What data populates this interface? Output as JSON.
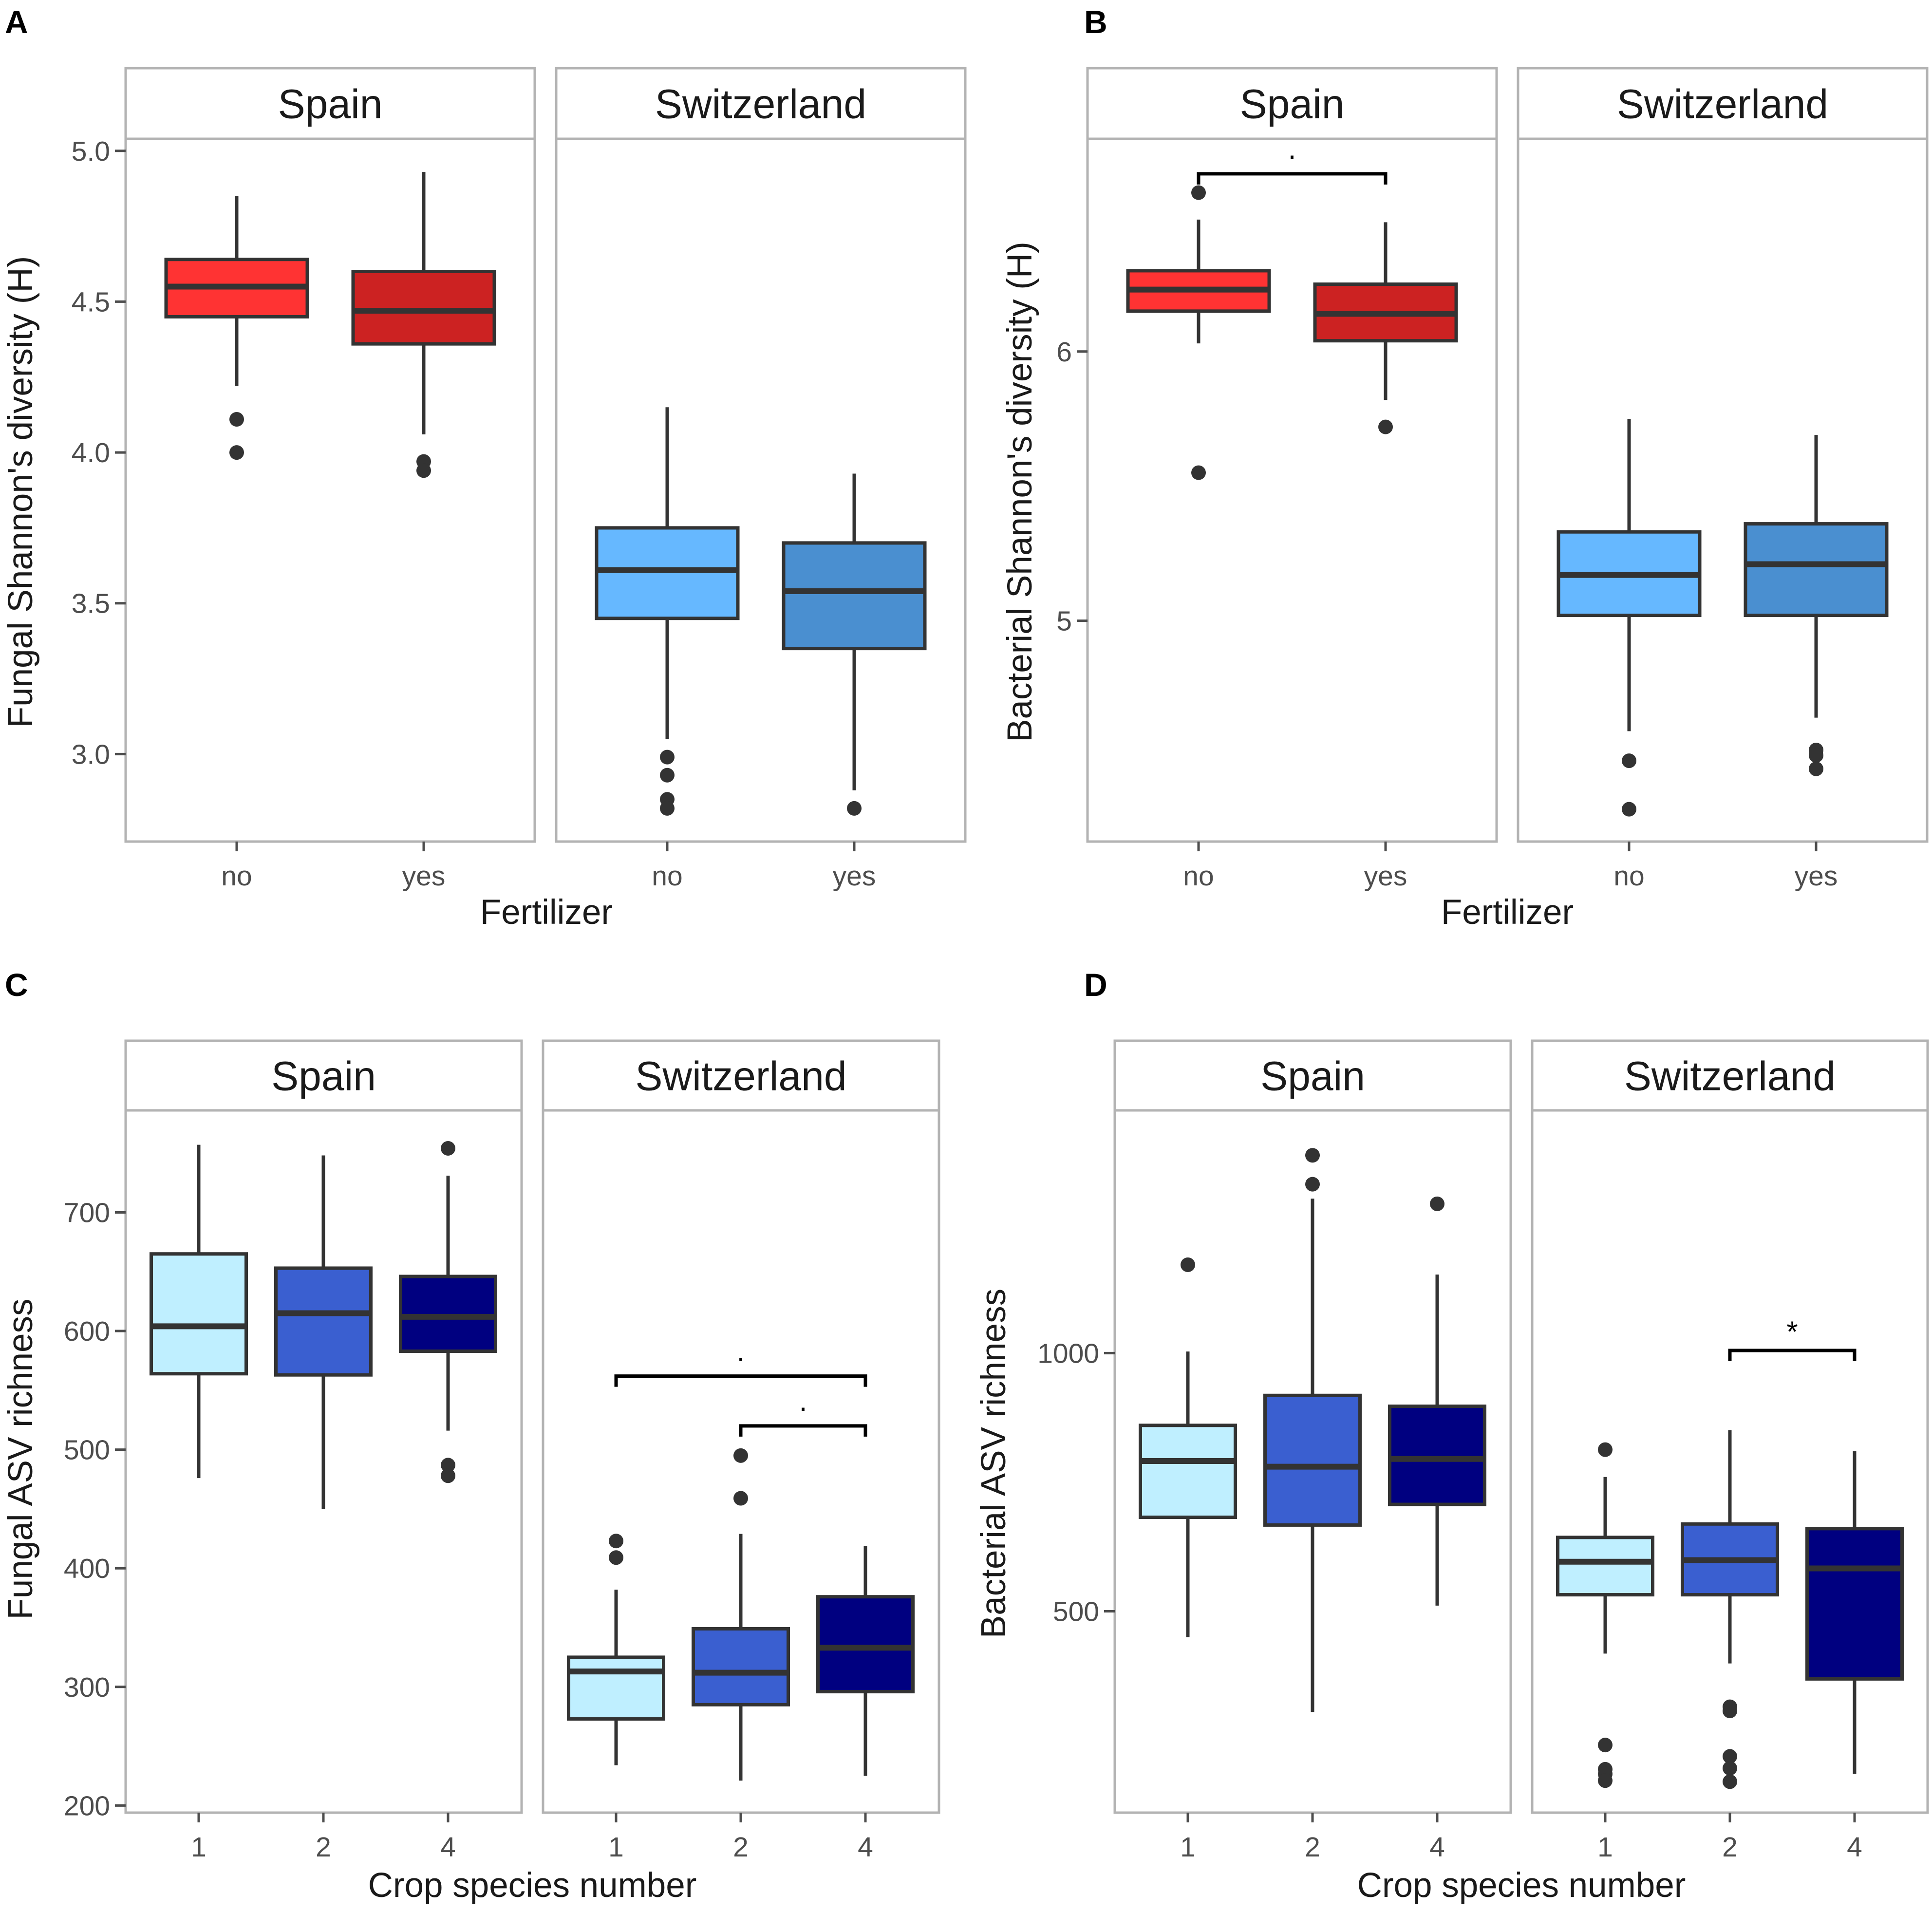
{
  "figure": {
    "colors": {
      "spain_no": "#FF3333",
      "spain_yes": "#CC2222",
      "swiss_no": "#66B8FF",
      "swiss_yes": "#4A8FD0",
      "crop_1": "#BFEFFF",
      "crop_2": "#3A5FD0",
      "crop_4": "#000080"
    }
  },
  "chart_data": [
    {
      "panel": "A",
      "type": "box",
      "title": "",
      "xlabel": "Fertilizer",
      "ylabel": "Fungal Shannon's diversity (H)",
      "ylim": [
        2.71,
        5.04
      ],
      "yticks": [
        3.0,
        3.5,
        4.0,
        4.5,
        5.0
      ],
      "ytick_labels": [
        "3.0",
        "3.5",
        "4.0",
        "4.5",
        "5.0"
      ],
      "facets": [
        {
          "label": "Spain",
          "boxes": [
            {
              "x": "no",
              "color_key": "spain_no",
              "whisker_low": 4.22,
              "q1": 4.45,
              "median": 4.55,
              "q3": 4.64,
              "whisker_high": 4.85,
              "outliers": [
                4.11,
                4.0
              ]
            },
            {
              "x": "yes",
              "color_key": "spain_yes",
              "whisker_low": 4.06,
              "q1": 4.36,
              "median": 4.47,
              "q3": 4.6,
              "whisker_high": 4.93,
              "outliers": [
                3.97,
                3.94
              ]
            }
          ],
          "brackets": []
        },
        {
          "label": "Switzerland",
          "boxes": [
            {
              "x": "no",
              "color_key": "swiss_no",
              "whisker_low": 3.05,
              "q1": 3.45,
              "median": 3.61,
              "q3": 3.75,
              "whisker_high": 4.15,
              "outliers": [
                2.99,
                2.93,
                2.85,
                2.82
              ]
            },
            {
              "x": "yes",
              "color_key": "swiss_yes",
              "whisker_low": 2.88,
              "q1": 3.35,
              "median": 3.54,
              "q3": 3.7,
              "whisker_high": 3.93,
              "outliers": [
                2.82
              ]
            }
          ],
          "brackets": []
        }
      ]
    },
    {
      "panel": "B",
      "type": "box",
      "title": "",
      "xlabel": "Fertilizer",
      "ylabel": "Bacterial Shannon's diversity (H)",
      "ylim": [
        4.18,
        6.79
      ],
      "yticks": [
        5,
        6
      ],
      "ytick_labels": [
        "5",
        "6"
      ],
      "facets": [
        {
          "label": "Spain",
          "boxes": [
            {
              "x": "no",
              "color_key": "spain_no",
              "whisker_low": 6.03,
              "q1": 6.15,
              "median": 6.23,
              "q3": 6.3,
              "whisker_high": 6.49,
              "outliers": [
                6.59,
                5.55
              ]
            },
            {
              "x": "yes",
              "color_key": "spain_yes",
              "whisker_low": 5.82,
              "q1": 6.04,
              "median": 6.14,
              "q3": 6.25,
              "whisker_high": 6.48,
              "outliers": [
                5.72
              ]
            }
          ],
          "brackets": [
            {
              "from": "no",
              "to": "yes",
              "label": "·",
              "y": 6.66
            }
          ]
        },
        {
          "label": "Switzerland",
          "boxes": [
            {
              "x": "no",
              "color_key": "swiss_no",
              "whisker_low": 4.59,
              "q1": 5.02,
              "median": 5.17,
              "q3": 5.33,
              "whisker_high": 5.75,
              "outliers": [
                4.48,
                4.3
              ]
            },
            {
              "x": "yes",
              "color_key": "swiss_yes",
              "whisker_low": 4.64,
              "q1": 5.02,
              "median": 5.21,
              "q3": 5.36,
              "whisker_high": 5.69,
              "outliers": [
                4.52,
                4.5,
                4.45
              ]
            }
          ],
          "brackets": []
        }
      ]
    },
    {
      "panel": "C",
      "type": "box",
      "title": "",
      "xlabel": "Crop species number",
      "ylabel": "Fungal ASV richness",
      "ylim": [
        194,
        786
      ],
      "yticks": [
        200,
        300,
        400,
        500,
        600,
        700
      ],
      "ytick_labels": [
        "200",
        "300",
        "400",
        "500",
        "600",
        "700"
      ],
      "facets": [
        {
          "label": "Spain",
          "boxes": [
            {
              "x": "1",
              "color_key": "crop_1",
              "whisker_low": 476,
              "q1": 564,
              "median": 604,
              "q3": 665,
              "whisker_high": 757,
              "outliers": []
            },
            {
              "x": "2",
              "color_key": "crop_2",
              "whisker_low": 450,
              "q1": 563,
              "median": 615,
              "q3": 653,
              "whisker_high": 748,
              "outliers": []
            },
            {
              "x": "4",
              "color_key": "crop_4",
              "whisker_low": 516,
              "q1": 583,
              "median": 612,
              "q3": 646,
              "whisker_high": 731,
              "outliers": [
                754,
                487,
                478
              ]
            }
          ],
          "brackets": []
        },
        {
          "label": "Switzerland",
          "boxes": [
            {
              "x": "1",
              "color_key": "crop_1",
              "whisker_low": 234,
              "q1": 273,
              "median": 313,
              "q3": 325,
              "whisker_high": 382,
              "outliers": [
                423,
                409
              ]
            },
            {
              "x": "2",
              "color_key": "crop_2",
              "whisker_low": 221,
              "q1": 285,
              "median": 312,
              "q3": 349,
              "whisker_high": 429,
              "outliers": [
                495,
                459
              ]
            },
            {
              "x": "4",
              "color_key": "crop_4",
              "whisker_low": 225,
              "q1": 296,
              "median": 333,
              "q3": 376,
              "whisker_high": 419,
              "outliers": []
            }
          ],
          "brackets": [
            {
              "from": "1",
              "to": "4",
              "label": "·",
              "y": 562
            },
            {
              "from": "2",
              "to": "4",
              "label": "·",
              "y": 520
            }
          ]
        }
      ]
    },
    {
      "panel": "D",
      "type": "box",
      "title": "",
      "xlabel": "Crop species number",
      "ylabel": "Bacterial ASV richness",
      "ylim": [
        110,
        1470
      ],
      "yticks": [
        500,
        1000
      ],
      "ytick_labels": [
        "500",
        "1000"
      ],
      "facets": [
        {
          "label": "Spain",
          "boxes": [
            {
              "x": "1",
              "color_key": "crop_1",
              "whisker_low": 450,
              "q1": 682,
              "median": 791,
              "q3": 860,
              "whisker_high": 1003,
              "outliers": [
                1171
              ]
            },
            {
              "x": "2",
              "color_key": "crop_2",
              "whisker_low": 305,
              "q1": 667,
              "median": 780,
              "q3": 918,
              "whisker_high": 1299,
              "outliers": [
                1383,
                1327
              ]
            },
            {
              "x": "4",
              "color_key": "crop_4",
              "whisker_low": 511,
              "q1": 707,
              "median": 795,
              "q3": 897,
              "whisker_high": 1152,
              "outliers": [
                1289
              ]
            }
          ],
          "brackets": []
        },
        {
          "label": "Switzerland",
          "boxes": [
            {
              "x": "1",
              "color_key": "crop_1",
              "whisker_low": 418,
              "q1": 532,
              "median": 596,
              "q3": 643,
              "whisker_high": 760,
              "outliers": [
                813,
                241,
                194,
                185,
                172
              ]
            },
            {
              "x": "2",
              "color_key": "crop_2",
              "whisker_low": 399,
              "q1": 532,
              "median": 599,
              "q3": 669,
              "whisker_high": 851,
              "outliers": [
                315,
                307,
                219,
                196,
                170
              ]
            },
            {
              "x": "4",
              "color_key": "crop_4",
              "whisker_low": 185,
              "q1": 369,
              "median": 583,
              "q3": 660,
              "whisker_high": 810,
              "outliers": []
            }
          ],
          "brackets": [
            {
              "from": "2",
              "to": "4",
              "label": "*",
              "y": 1005
            }
          ]
        }
      ]
    }
  ]
}
